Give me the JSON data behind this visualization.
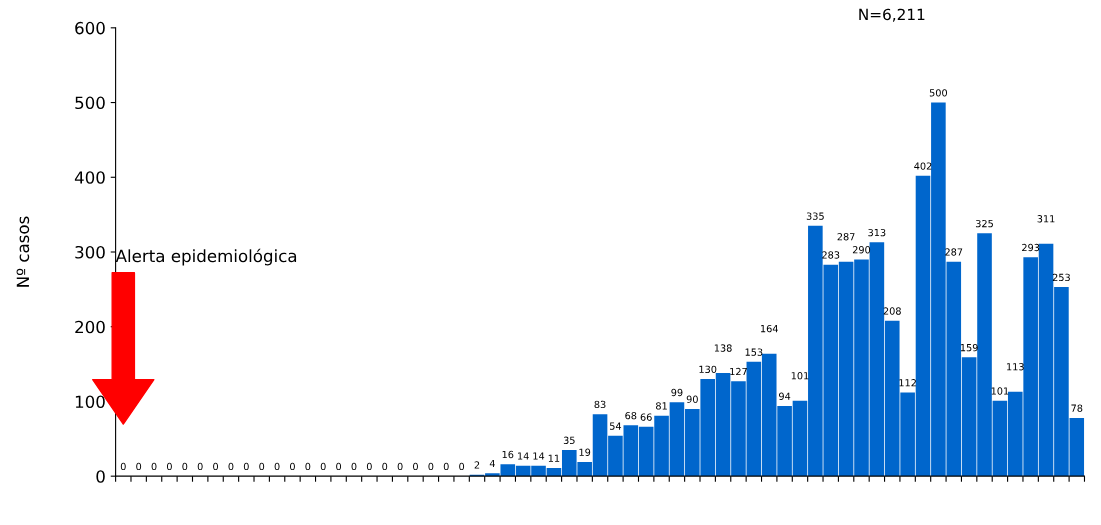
{
  "chart_data": {
    "type": "bar",
    "ylabel": "Nº casos",
    "categories": [
      null,
      null,
      null,
      null,
      null,
      null,
      null,
      null,
      null,
      null,
      null,
      null,
      null,
      null,
      null,
      null,
      null,
      null,
      null,
      null,
      null,
      null,
      null,
      null,
      null,
      null,
      null,
      null,
      null,
      null,
      null,
      null,
      null,
      null,
      null,
      null,
      null,
      null,
      null,
      null,
      null,
      null,
      null,
      null,
      null,
      null,
      null,
      null,
      null,
      null,
      null,
      null,
      null,
      null,
      null,
      null,
      null,
      null,
      null,
      null,
      null,
      null,
      null
    ],
    "values": [
      0,
      0,
      0,
      0,
      0,
      0,
      0,
      0,
      0,
      0,
      0,
      0,
      0,
      0,
      0,
      0,
      0,
      0,
      0,
      0,
      0,
      0,
      0,
      2,
      4,
      16,
      14,
      14,
      11,
      35,
      19,
      83,
      54,
      68,
      66,
      81,
      99,
      90,
      130,
      138,
      127,
      153,
      164,
      94,
      101,
      335,
      283,
      287,
      290,
      313,
      208,
      112,
      402,
      500,
      287,
      159,
      325,
      101,
      113,
      293,
      311,
      253,
      78
    ],
    "color": "#0066cc",
    "ylim": [
      0,
      600
    ],
    "yticks": [
      0,
      100,
      200,
      300,
      400,
      500,
      600
    ],
    "data_labels": true,
    "tick_labels": "y",
    "grid": false,
    "annotations": [
      "N=6,211",
      "Alerta epidemiológica"
    ]
  }
}
